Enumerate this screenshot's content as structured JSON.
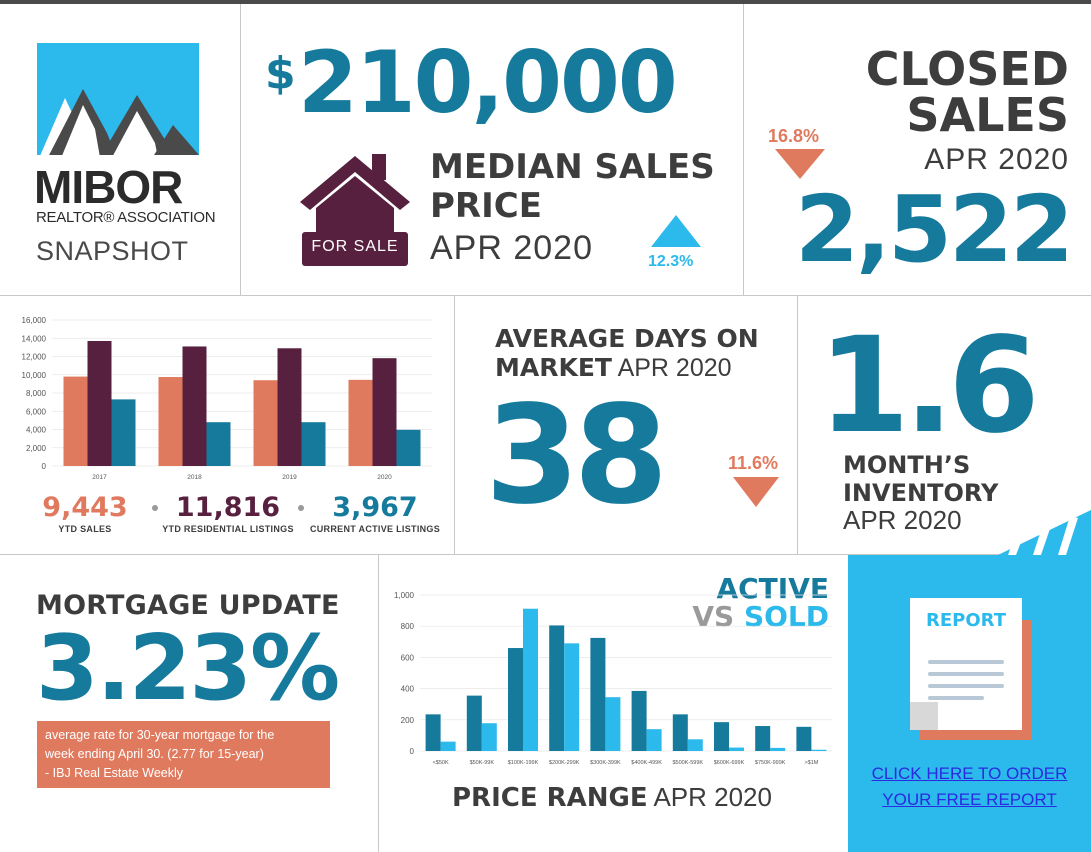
{
  "logo": {
    "word": "MIBOR",
    "subtitle": "REALTOR® ASSOCIATION",
    "snapshot": "SNAPSHOT",
    "icon": "mountain-logo-icon"
  },
  "median_sales_price": {
    "currency_symbol": "$",
    "value": "210,000",
    "label": "MEDIAN SALES PRICE",
    "period": "APR 2020",
    "change": "12.3%",
    "direction": "up",
    "house_sign": "FOR SALE",
    "icon": "house-icon"
  },
  "closed_sales": {
    "label_line1": "CLOSED",
    "label_line2": "SALES",
    "period": "APR 2020",
    "value": "2,522",
    "change": "16.8%",
    "direction": "down"
  },
  "ytd_chart": {
    "stats": [
      {
        "value": "9,443",
        "label": "YTD SALES"
      },
      {
        "value": "11,816",
        "label": "YTD RESIDENTIAL LISTINGS"
      },
      {
        "value": "3,967",
        "label": "CURRENT ACTIVE LISTINGS"
      }
    ]
  },
  "avg_days_on_market": {
    "label_line1": "AVERAGE DAYS ON",
    "label_line2_bold": "MARKET",
    "period": "APR 2020",
    "value": "38",
    "change": "11.6%",
    "direction": "down"
  },
  "months_inventory": {
    "value": "1.6",
    "label_line1": "MONTH’S",
    "label_line2": "INVENTORY",
    "period": "APR 2020"
  },
  "mortgage": {
    "label": "MORTGAGE UPDATE",
    "value": "3.23%",
    "note_line1": "average rate for 30-year mortgage for the",
    "note_line2": "week ending April 30. (2.77 for 15-year)",
    "note_line3": "- IBJ Real Estate Weekly"
  },
  "active_vs_sold": {
    "title_line1": "ACTIVE",
    "title_vs": "VS",
    "title_sold": "SOLD",
    "footer_bold": "PRICE RANGE",
    "footer_period": "APR 2020"
  },
  "report": {
    "doc_title": "REPORT",
    "link_line1": "CLICK HERE TO ORDER",
    "link_line2": "YOUR FREE REPORT",
    "icon": "report-document-icon"
  },
  "colors": {
    "teal": "#157a9c",
    "sky": "#2cb9ec",
    "orange": "#e07a5f",
    "plum": "#57203f",
    "dark": "#3d3d3d"
  },
  "chart_data": [
    {
      "type": "bar",
      "categories": [
        "2017",
        "2018",
        "2019",
        "2020"
      ],
      "series": [
        {
          "name": "YTD SALES",
          "color": "#e07a5f",
          "values": [
            9800,
            9750,
            9400,
            9443
          ]
        },
        {
          "name": "YTD RESIDENTIAL LISTINGS",
          "color": "#57203f",
          "values": [
            13700,
            13100,
            12900,
            11816
          ]
        },
        {
          "name": "CURRENT ACTIVE LISTINGS",
          "color": "#157a9c",
          "values": [
            7300,
            4800,
            4800,
            3967
          ]
        }
      ],
      "yticks": [
        "0",
        "2,000",
        "4,000",
        "6,000",
        "8,000",
        "10,000",
        "12,000",
        "14,000",
        "16,000"
      ],
      "ylim": [
        0,
        16000
      ],
      "grid": true
    },
    {
      "type": "bar",
      "categories": [
        "<$50K",
        "$50K-99K",
        "$100K-199K",
        "$200K-299K",
        "$300K-399K",
        "$400K-499K",
        "$500K-599K",
        "$600K-699K",
        "$750K-999K",
        ">$1M"
      ],
      "series": [
        {
          "name": "ACTIVE",
          "color": "#157a9c",
          "values": [
            235,
            355,
            660,
            805,
            725,
            385,
            235,
            185,
            160,
            155
          ]
        },
        {
          "name": "SOLD",
          "color": "#2cb9ec",
          "values": [
            60,
            178,
            912,
            690,
            345,
            140,
            75,
            22,
            20,
            8
          ]
        }
      ],
      "yticks": [
        "0",
        "200",
        "400",
        "600",
        "800",
        "1,000"
      ],
      "ylim": [
        0,
        1000
      ],
      "xlabel": "PRICE RANGE APR 2020",
      "grid": true
    }
  ]
}
